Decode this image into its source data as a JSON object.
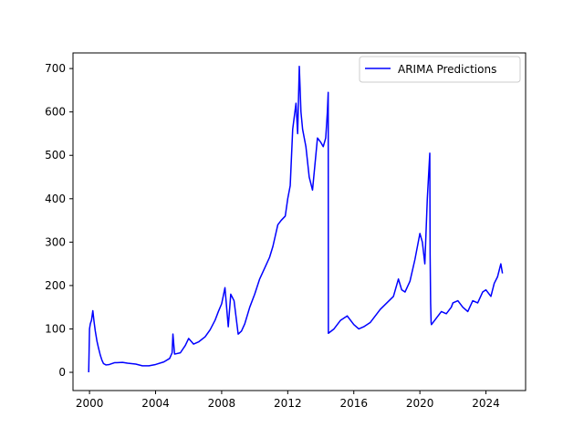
{
  "chart_data": {
    "type": "line",
    "title": "",
    "xlabel": "",
    "ylabel": "",
    "x_axis": {
      "min": 1999.0,
      "max": 2026.4,
      "ticks": [
        2000,
        2004,
        2008,
        2012,
        2016,
        2020,
        2024
      ],
      "tick_labels": [
        "2000",
        "2004",
        "2008",
        "2012",
        "2016",
        "2020",
        "2024"
      ]
    },
    "y_axis": {
      "min": -42,
      "max": 736,
      "ticks": [
        0,
        100,
        200,
        300,
        400,
        500,
        600,
        700
      ],
      "tick_labels": [
        "0",
        "100",
        "200",
        "300",
        "400",
        "500",
        "600",
        "700"
      ]
    },
    "grid": false,
    "legend": {
      "position": "top-right",
      "entries": [
        "ARIMA Predictions"
      ]
    },
    "series": [
      {
        "name": "ARIMA Predictions",
        "color": "#0000ff",
        "x": [
          1999.95,
          2000.0,
          2000.05,
          2000.12,
          2000.2,
          2000.28,
          2000.35,
          2000.45,
          2000.55,
          2000.65,
          2000.75,
          2000.85,
          2001.0,
          2001.2,
          2001.5,
          2002.0,
          2002.3,
          2002.8,
          2003.2,
          2003.6,
          2004.0,
          2004.5,
          2004.85,
          2005.0,
          2005.05,
          2005.15,
          2005.5,
          2005.8,
          2006.0,
          2006.3,
          2006.6,
          2007.0,
          2007.3,
          2007.6,
          2007.8,
          2008.0,
          2008.2,
          2008.4,
          2008.55,
          2008.75,
          2009.0,
          2009.2,
          2009.4,
          2009.7,
          2010.0,
          2010.3,
          2010.6,
          2010.9,
          2011.1,
          2011.4,
          2011.6,
          2011.85,
          2012.0,
          2012.15,
          2012.3,
          2012.5,
          2012.6,
          2012.7,
          2012.8,
          2012.9,
          2013.1,
          2013.3,
          2013.5,
          2013.65,
          2013.8,
          2014.0,
          2014.15,
          2014.3,
          2014.4,
          2014.45,
          2014.46,
          2014.8,
          2015.2,
          2015.6,
          2016.0,
          2016.3,
          2016.6,
          2017.0,
          2017.3,
          2017.6,
          2018.0,
          2018.4,
          2018.7,
          2018.9,
          2019.1,
          2019.4,
          2019.7,
          2020.0,
          2020.15,
          2020.3,
          2020.45,
          2020.55,
          2020.6,
          2020.62,
          2020.65,
          2020.68,
          2020.7,
          2021.0,
          2021.3,
          2021.6,
          2021.9,
          2022.0,
          2022.3,
          2022.6,
          2022.9,
          2023.2,
          2023.5,
          2023.8,
          2024.0,
          2024.3,
          2024.5,
          2024.7,
          2024.9,
          2025.0
        ],
        "y": [
          0,
          100,
          112,
          120,
          142,
          115,
          95,
          72,
          55,
          40,
          28,
          20,
          17,
          18,
          22,
          23,
          21,
          19,
          15,
          15,
          18,
          24,
          32,
          45,
          88,
          42,
          45,
          62,
          78,
          65,
          70,
          82,
          98,
          120,
          140,
          158,
          195,
          105,
          180,
          165,
          88,
          95,
          112,
          150,
          180,
          215,
          240,
          265,
          290,
          340,
          350,
          360,
          400,
          430,
          560,
          620,
          550,
          705,
          600,
          560,
          520,
          450,
          420,
          480,
          540,
          530,
          520,
          540,
          600,
          645,
          90,
          100,
          120,
          130,
          110,
          100,
          105,
          115,
          130,
          145,
          160,
          175,
          215,
          190,
          185,
          210,
          260,
          320,
          300,
          250,
          400,
          470,
          505,
          270,
          160,
          115,
          110,
          125,
          140,
          135,
          150,
          160,
          165,
          150,
          140,
          165,
          160,
          185,
          190,
          175,
          205,
          220,
          250,
          228
        ]
      }
    ]
  }
}
